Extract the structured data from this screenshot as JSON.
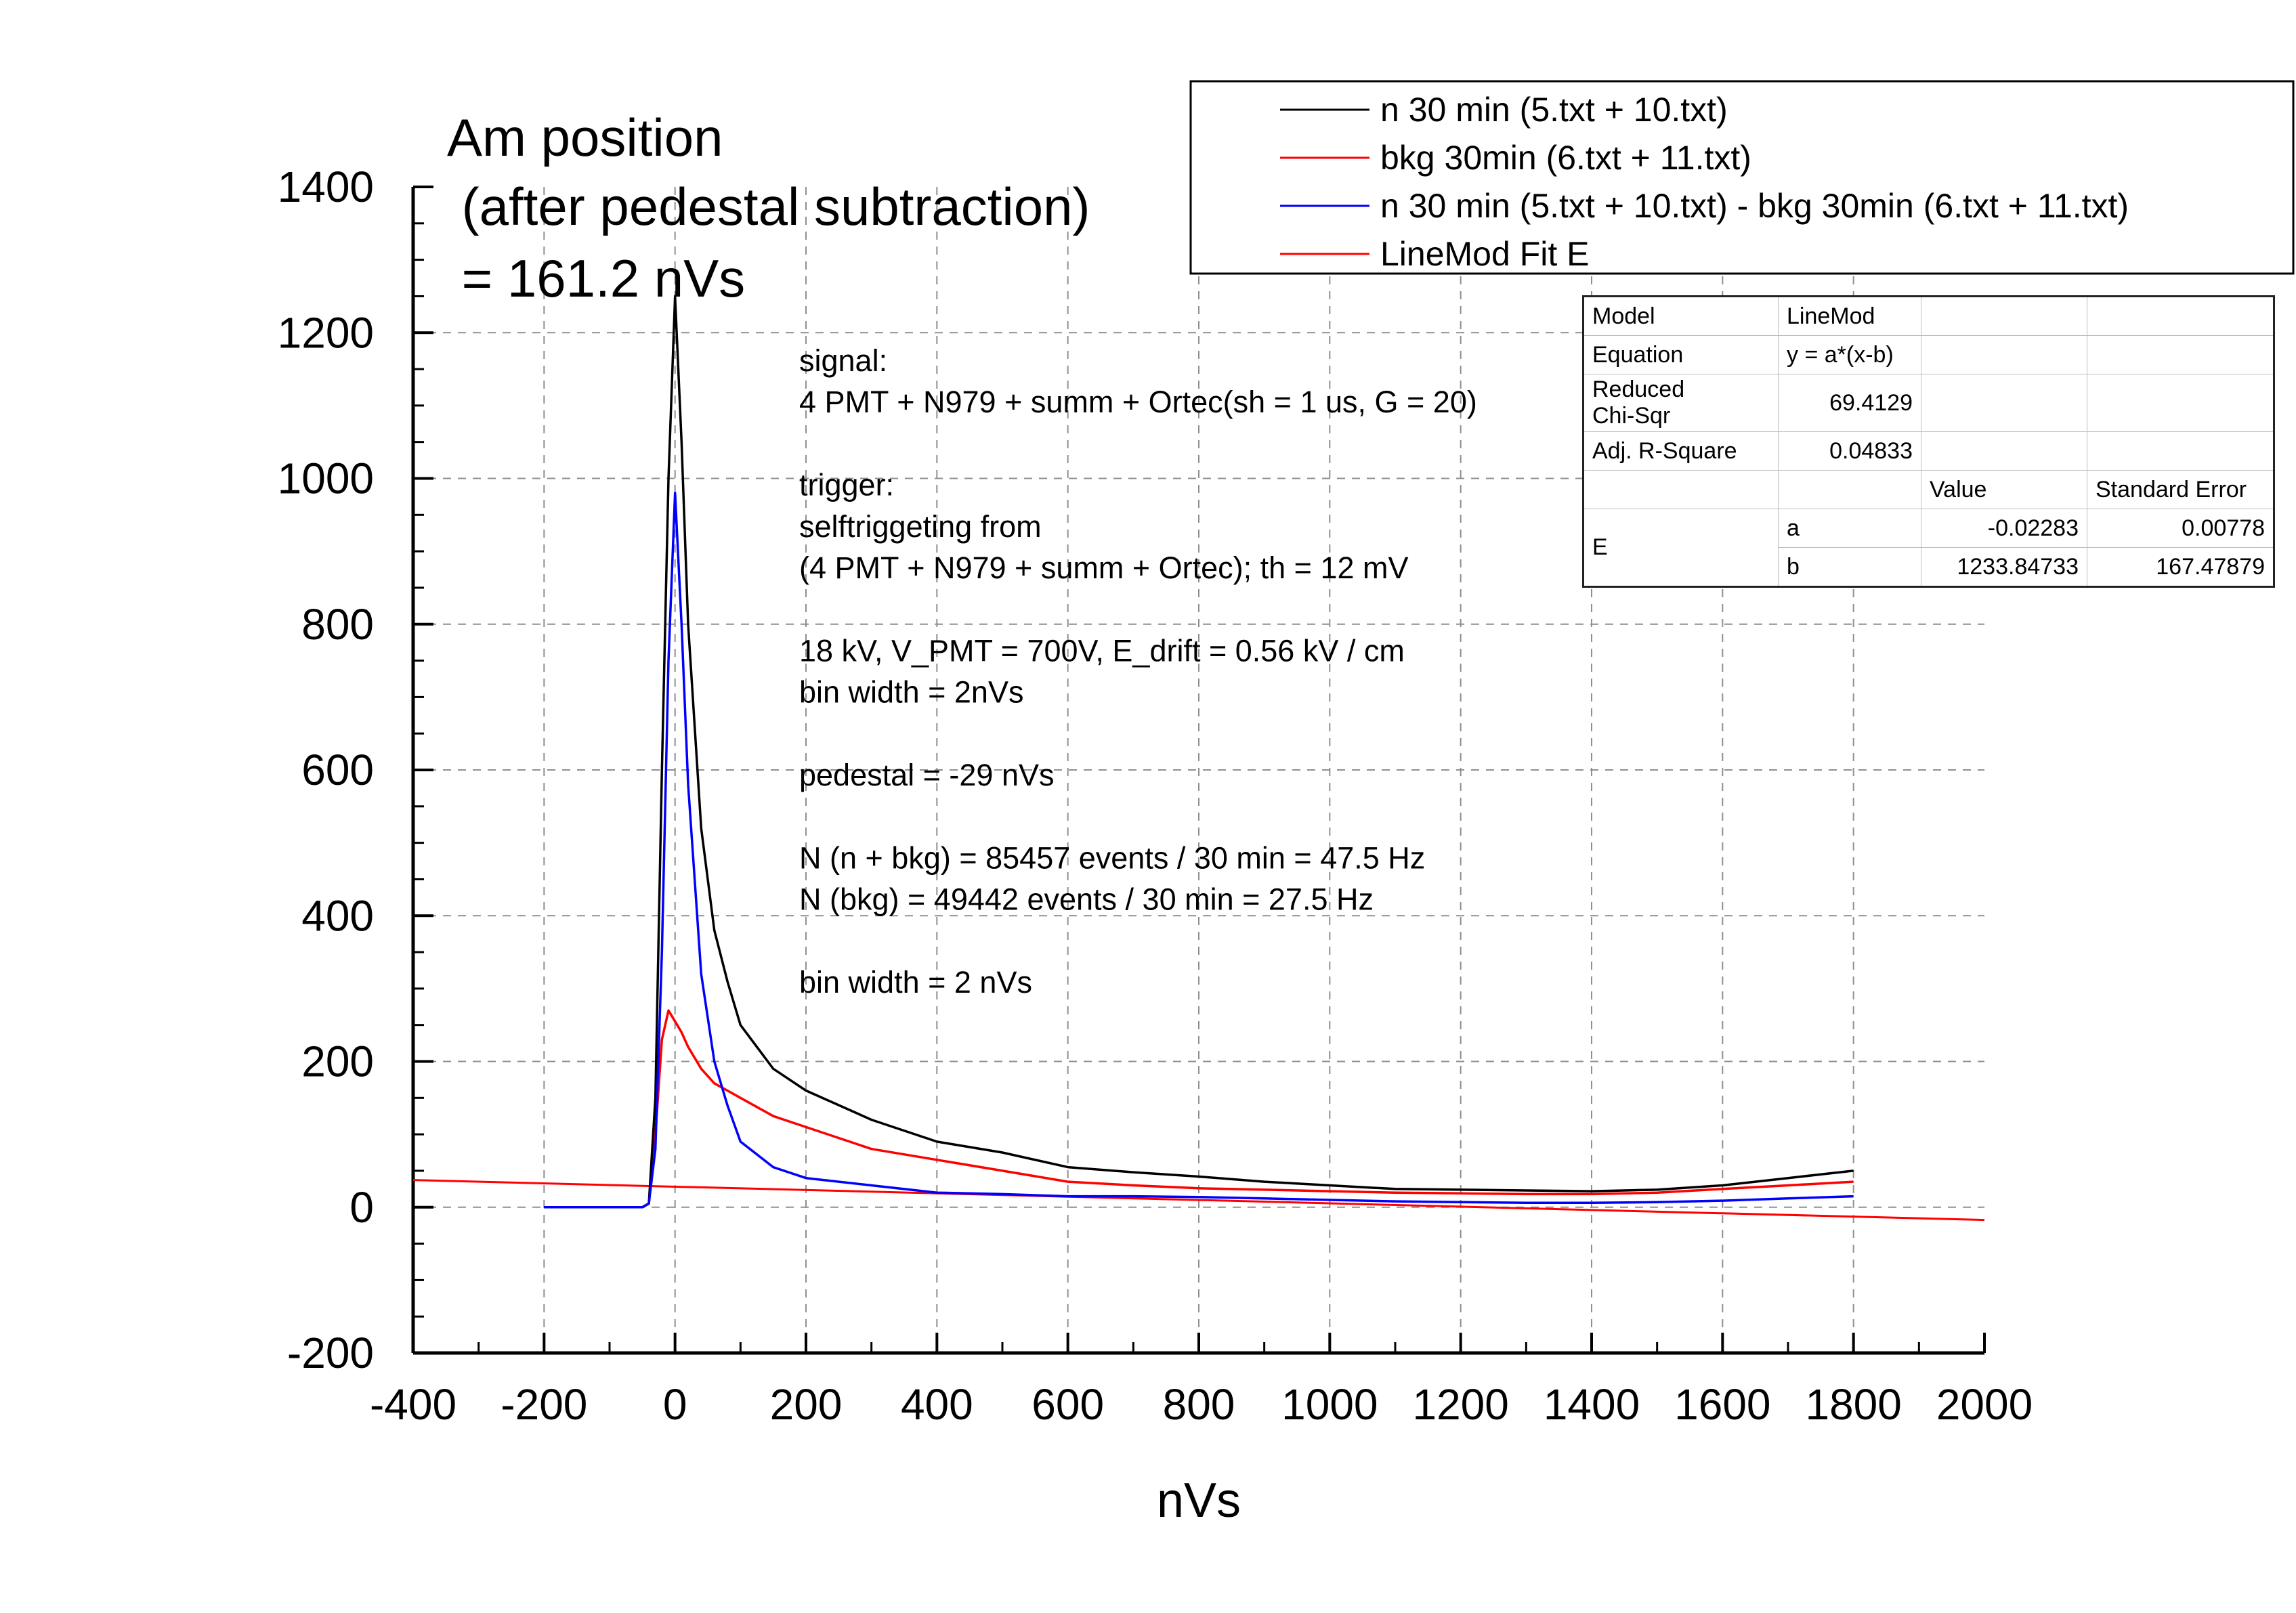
{
  "chart_data": {
    "type": "line",
    "title_lines": [
      "Am position",
      " (after pedestal subtraction)",
      " = 161.2 nVs"
    ],
    "xlabel": "nVs",
    "ylabel": "",
    "xlim": [
      -400,
      2000
    ],
    "ylim": [
      -200,
      1400
    ],
    "x_ticks": [
      "-400",
      "-200",
      "0",
      "200",
      "400",
      "600",
      "800",
      "1000",
      "1200",
      "1400",
      "1600",
      "1800",
      "2000"
    ],
    "y_ticks": [
      "-200",
      "0",
      "200",
      "400",
      "600",
      "800",
      "1000",
      "1200",
      "1400"
    ],
    "grid": true,
    "legend_position": "top-right",
    "series": [
      {
        "name": "n 30 min (5.txt + 10.txt)",
        "color": "#000000",
        "points": [
          [
            -200,
            0
          ],
          [
            -50,
            0
          ],
          [
            -40,
            5
          ],
          [
            -30,
            150
          ],
          [
            -20,
            600
          ],
          [
            -10,
            1000
          ],
          [
            0,
            1250
          ],
          [
            10,
            1050
          ],
          [
            20,
            800
          ],
          [
            40,
            520
          ],
          [
            60,
            380
          ],
          [
            80,
            310
          ],
          [
            100,
            250
          ],
          [
            150,
            190
          ],
          [
            200,
            160
          ],
          [
            300,
            120
          ],
          [
            400,
            90
          ],
          [
            500,
            75
          ],
          [
            600,
            55
          ],
          [
            700,
            48
          ],
          [
            800,
            42
          ],
          [
            900,
            35
          ],
          [
            1000,
            30
          ],
          [
            1100,
            25
          ],
          [
            1200,
            24
          ],
          [
            1300,
            23
          ],
          [
            1400,
            22
          ],
          [
            1500,
            24
          ],
          [
            1600,
            30
          ],
          [
            1700,
            40
          ],
          [
            1800,
            50
          ]
        ]
      },
      {
        "name": "bkg 30min (6.txt + 11.txt)",
        "color": "#ff0000",
        "points": [
          [
            -200,
            0
          ],
          [
            -50,
            0
          ],
          [
            -40,
            5
          ],
          [
            -30,
            100
          ],
          [
            -20,
            230
          ],
          [
            -10,
            270
          ],
          [
            0,
            255
          ],
          [
            10,
            240
          ],
          [
            20,
            220
          ],
          [
            40,
            190
          ],
          [
            60,
            170
          ],
          [
            80,
            160
          ],
          [
            100,
            150
          ],
          [
            150,
            125
          ],
          [
            200,
            110
          ],
          [
            300,
            80
          ],
          [
            400,
            65
          ],
          [
            500,
            50
          ],
          [
            600,
            35
          ],
          [
            700,
            30
          ],
          [
            800,
            26
          ],
          [
            900,
            24
          ],
          [
            1000,
            22
          ],
          [
            1100,
            20
          ],
          [
            1200,
            19
          ],
          [
            1300,
            18
          ],
          [
            1400,
            18
          ],
          [
            1500,
            20
          ],
          [
            1600,
            25
          ],
          [
            1700,
            30
          ],
          [
            1800,
            35
          ]
        ]
      },
      {
        "name": "n 30 min (5.txt + 10.txt) - bkg 30min (6.txt + 11.txt)",
        "color": "#0000ff",
        "points": [
          [
            -200,
            0
          ],
          [
            -50,
            0
          ],
          [
            -40,
            5
          ],
          [
            -30,
            80
          ],
          [
            -20,
            350
          ],
          [
            -10,
            750
          ],
          [
            0,
            980
          ],
          [
            10,
            800
          ],
          [
            20,
            580
          ],
          [
            40,
            320
          ],
          [
            60,
            200
          ],
          [
            80,
            140
          ],
          [
            100,
            90
          ],
          [
            150,
            55
          ],
          [
            200,
            40
          ],
          [
            300,
            30
          ],
          [
            400,
            20
          ],
          [
            500,
            18
          ],
          [
            600,
            15
          ],
          [
            700,
            15
          ],
          [
            800,
            14
          ],
          [
            900,
            12
          ],
          [
            1000,
            10
          ],
          [
            1100,
            8
          ],
          [
            1200,
            7
          ],
          [
            1300,
            6
          ],
          [
            1400,
            6
          ],
          [
            1500,
            7
          ],
          [
            1600,
            9
          ],
          [
            1700,
            12
          ],
          [
            1800,
            15
          ]
        ]
      },
      {
        "name": "LineMod Fit E",
        "color": "#ff0000",
        "points": [
          [
            -400,
            37.3
          ],
          [
            2000,
            -17.5
          ]
        ]
      }
    ],
    "annotations": [
      "signal:",
      "4 PMT + N979 + summ + Ortec(sh =  1 us, G = 20)",
      "",
      "trigger:",
      "selftriggeting from",
      "(4 PMT + N979 + summ + Ortec); th = 12 mV",
      "",
      "18 kV, V_PMT = 700V, E_drift = 0.56 kV / cm",
      "bin width = 2nVs",
      "",
      "pedestal = -29 nVs",
      "",
      "N (n + bkg) =  85457 events / 30 min = 47.5 Hz",
      "N (bkg) = 49442 events / 30 min = 27.5 Hz",
      "",
      "bin width = 2 nVs"
    ]
  },
  "fit_table": {
    "model_label": "Model",
    "model_value": "LineMod",
    "equation_label": "Equation",
    "equation_value": "y = a*(x-b)",
    "chisq_label_1": "Reduced",
    "chisq_label_2": "Chi-Sqr",
    "chisq_value": "69.4129",
    "r2_label": "Adj. R-Square",
    "r2_value": "0.04833",
    "value_header": "Value",
    "error_header": "Standard Error",
    "group_label": "E",
    "params": [
      {
        "name": "a",
        "value": "-0.02283",
        "error": "0.00778"
      },
      {
        "name": "b",
        "value": "1233.84733",
        "error": "167.47879"
      }
    ]
  }
}
